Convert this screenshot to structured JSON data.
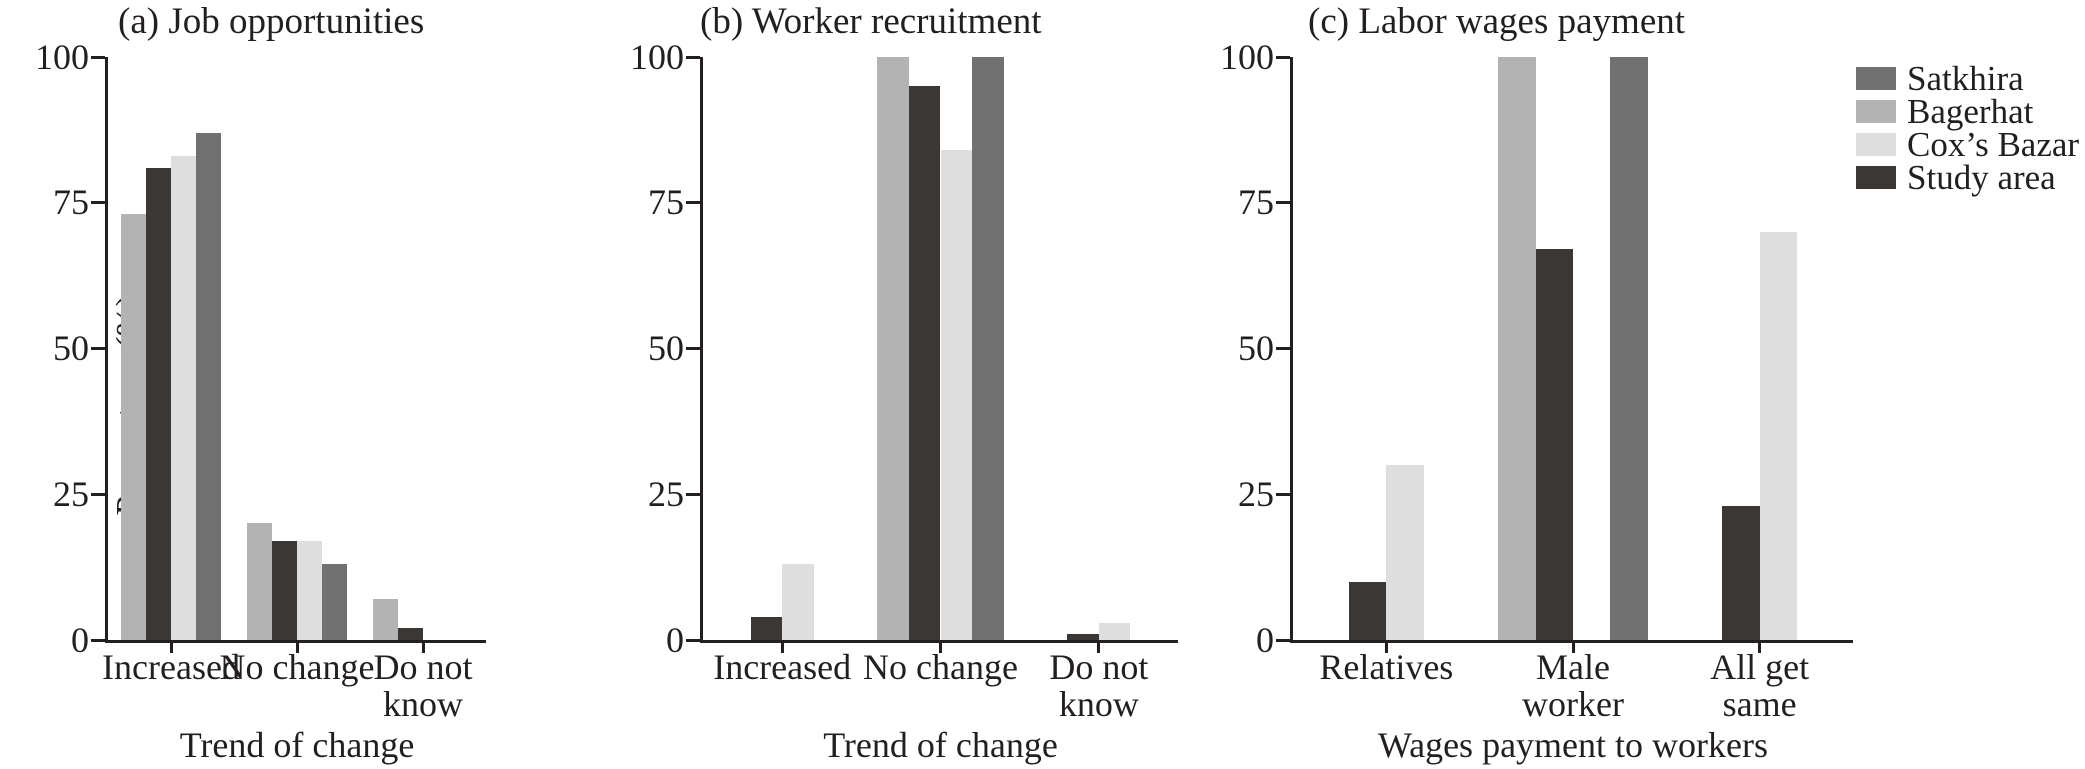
{
  "figure": {
    "y_axis_title": "Percentage (%)",
    "background_color": "#ffffff",
    "text_color": "#231f20",
    "axis_color": "#231f20"
  },
  "legend": {
    "position": "right",
    "items": [
      {
        "label": "Satkhira",
        "color": "#717171"
      },
      {
        "label": "Bagerhat",
        "color": "#b3b3b3"
      },
      {
        "label": "Cox’s Bazar",
        "color": "#dedede"
      },
      {
        "label": "Study area",
        "color": "#3b3735"
      }
    ]
  },
  "chart_data": [
    {
      "type": "bar",
      "title": "(a) Job opportunities",
      "xlabel": "Trend of change",
      "ylabel": "Percentage (%)",
      "ylim": [
        0,
        100
      ],
      "y_ticks": [
        0,
        25,
        50,
        75,
        100
      ],
      "grid": false,
      "categories": [
        "Increased",
        "No change",
        "Do not know"
      ],
      "category_label_lines": [
        [
          "Increased"
        ],
        [
          "No change"
        ],
        [
          "Do not",
          "know"
        ]
      ],
      "series": [
        {
          "name": "Bagerhat",
          "color": "#b3b3b3",
          "values": [
            73,
            20,
            7
          ]
        },
        {
          "name": "Study area",
          "color": "#3b3735",
          "values": [
            81,
            17,
            2
          ]
        },
        {
          "name": "Cox’s Bazar",
          "color": "#dedede",
          "values": [
            83,
            17,
            0
          ]
        },
        {
          "name": "Satkhira",
          "color": "#717171",
          "values": [
            87,
            13,
            0
          ]
        }
      ]
    },
    {
      "type": "bar",
      "title": "(b) Worker recruitment",
      "xlabel": "Trend of change",
      "ylabel": "Percentage (%)",
      "ylim": [
        0,
        100
      ],
      "y_ticks": [
        0,
        25,
        50,
        75,
        100
      ],
      "grid": false,
      "categories": [
        "Increased",
        "No change",
        "Do not know"
      ],
      "category_label_lines": [
        [
          "Increased"
        ],
        [
          "No change"
        ],
        [
          "Do not",
          "know"
        ]
      ],
      "series": [
        {
          "name": "Bagerhat",
          "color": "#b3b3b3",
          "values": [
            0,
            100,
            0
          ]
        },
        {
          "name": "Study area",
          "color": "#3b3735",
          "values": [
            4,
            95,
            1
          ]
        },
        {
          "name": "Cox’s Bazar",
          "color": "#dedede",
          "values": [
            13,
            84,
            3
          ]
        },
        {
          "name": "Satkhira",
          "color": "#717171",
          "values": [
            0,
            100,
            0
          ]
        }
      ]
    },
    {
      "type": "bar",
      "title": "(c) Labor wages payment",
      "xlabel": "Wages payment to workers",
      "ylabel": "Percentage (%)",
      "ylim": [
        0,
        100
      ],
      "y_ticks": [
        0,
        25,
        50,
        75,
        100
      ],
      "grid": false,
      "categories": [
        "Relatives",
        "Male worker",
        "All get same"
      ],
      "category_label_lines": [
        [
          "Relatives"
        ],
        [
          "Male",
          "worker"
        ],
        [
          "All get",
          "same"
        ]
      ],
      "series": [
        {
          "name": "Bagerhat",
          "color": "#b3b3b3",
          "values": [
            0,
            100,
            0
          ]
        },
        {
          "name": "Study area",
          "color": "#3b3735",
          "values": [
            10,
            67,
            23
          ]
        },
        {
          "name": "Cox’s Bazar",
          "color": "#dedede",
          "values": [
            30,
            0,
            70
          ]
        },
        {
          "name": "Satkhira",
          "color": "#717171",
          "values": [
            0,
            100,
            0
          ]
        }
      ]
    }
  ]
}
